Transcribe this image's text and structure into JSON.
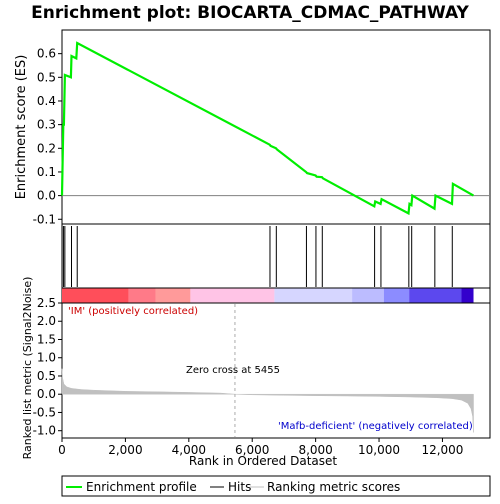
{
  "chart_data": [
    {
      "type": "line",
      "title": "Enrichment plot: BIOCARTA_CDMAC_PATHWAY",
      "ylabel": "Enrichment score (ES)",
      "xlim": [
        0,
        13500
      ],
      "ylim": [
        -0.12,
        0.7
      ],
      "yticks": [
        "-0.1",
        "0.0",
        "0.1",
        "0.2",
        "0.3",
        "0.4",
        "0.5",
        "0.6"
      ],
      "ytick_values": [
        -0.1,
        0.0,
        0.1,
        0.2,
        0.3,
        0.4,
        0.5,
        0.6
      ],
      "grid": false,
      "series": [
        {
          "name": "Enrichment profile",
          "color": "#00ee00",
          "x": [
            0,
            40,
            60,
            90,
            280,
            300,
            450,
            480,
            6550,
            6580,
            6750,
            6780,
            7700,
            7730,
            8000,
            8030,
            8200,
            8230,
            9850,
            9880,
            10050,
            10080,
            10930,
            10960,
            11020,
            11050,
            11750,
            11780,
            12300,
            12330,
            12980
          ],
          "y": [
            0.0,
            0.3,
            0.3,
            0.51,
            0.5,
            0.59,
            0.58,
            0.645,
            0.215,
            0.21,
            0.2,
            0.195,
            0.1,
            0.095,
            0.085,
            0.08,
            0.078,
            0.073,
            -0.045,
            -0.025,
            -0.035,
            -0.015,
            -0.075,
            -0.035,
            -0.04,
            0.0,
            -0.055,
            0.0,
            -0.035,
            0.05,
            0.0
          ]
        }
      ],
      "hits": [
        45,
        90,
        300,
        480,
        6560,
        6760,
        7710,
        8010,
        8210,
        9860,
        10060,
        10940,
        11030,
        11760,
        12310
      ]
    },
    {
      "type": "heatmap",
      "description_colors": [
        "#ff2a40",
        "#ff7a88",
        "#ff9a9a",
        "#ffc6e4",
        "#d8d4ff",
        "#c8c8ff",
        "#9090ff",
        "#5a4aee",
        "#3300cc"
      ],
      "bands": [
        {
          "from": 0,
          "to": 2100,
          "color": "#ff4e5a"
        },
        {
          "from": 2100,
          "to": 2950,
          "color": "#ff7a88"
        },
        {
          "from": 2950,
          "to": 4050,
          "color": "#ff9a9a"
        },
        {
          "from": 4050,
          "to": 6700,
          "color": "#ffc4e6"
        },
        {
          "from": 6700,
          "to": 9150,
          "color": "#d6d6ff"
        },
        {
          "from": 9150,
          "to": 10150,
          "color": "#bcbcff"
        },
        {
          "from": 10150,
          "to": 10950,
          "color": "#8c8cff"
        },
        {
          "from": 10950,
          "to": 12600,
          "color": "#5c48ee"
        },
        {
          "from": 12600,
          "to": 12980,
          "color": "#3300cc"
        }
      ]
    },
    {
      "type": "area",
      "ylabel": "Ranked list metric (Signal2Noise)",
      "xlabel": "Rank in Ordered Dataset",
      "xlim": [
        0,
        13500
      ],
      "ylim": [
        -1.2,
        2.5
      ],
      "xticks": [
        "0",
        "2,000",
        "4,000",
        "6,000",
        "8,000",
        "10,000",
        "12,000"
      ],
      "xtick_values": [
        0,
        2000,
        4000,
        6000,
        8000,
        10000,
        12000
      ],
      "yticks": [
        "-1.0",
        "-0.5",
        "0.0",
        "0.5",
        "1.0",
        "1.5",
        "2.0",
        "2.5"
      ],
      "ytick_values": [
        -1.0,
        -0.5,
        0.0,
        0.5,
        1.0,
        1.5,
        2.0,
        2.5
      ],
      "color": "#c0c0c0",
      "x": [
        0,
        20,
        60,
        150,
        300,
        600,
        1000,
        2000,
        3000,
        4000,
        5000,
        5455,
        6000,
        7000,
        8000,
        9000,
        10000,
        11000,
        11800,
        12300,
        12600,
        12800,
        12900,
        12950,
        12980
      ],
      "y": [
        0.7,
        0.45,
        0.28,
        0.2,
        0.16,
        0.13,
        0.11,
        0.08,
        0.065,
        0.05,
        0.03,
        0.0,
        -0.015,
        -0.03,
        -0.04,
        -0.05,
        -0.06,
        -0.075,
        -0.095,
        -0.12,
        -0.16,
        -0.25,
        -0.4,
        -0.6,
        -1.05
      ],
      "annotations": [
        {
          "text": "'IM' (positively correlated)",
          "color": "#cc0000"
        },
        {
          "text": "Zero cross at 5455",
          "color": "#000000",
          "x": 5455
        },
        {
          "text": "'Mafb-deficient' (negatively correlated)",
          "color": "#0000cc"
        }
      ]
    }
  ],
  "legend": {
    "items": [
      {
        "label": "Enrichment profile",
        "color": "#00ee00"
      },
      {
        "label": "Hits",
        "color": "#000000"
      },
      {
        "label": "Ranking metric scores",
        "color": "#c0c0c0"
      }
    ]
  }
}
